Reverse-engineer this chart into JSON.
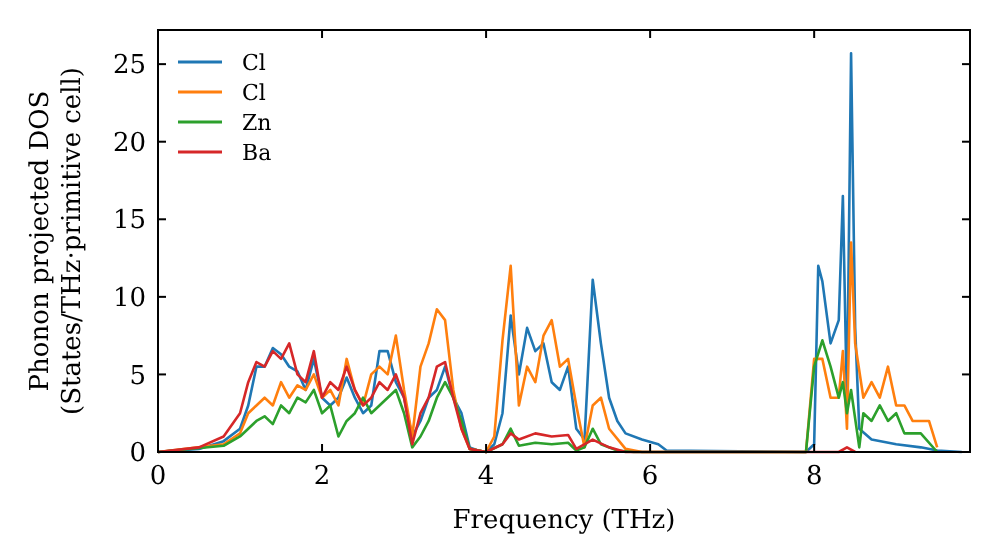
{
  "chart_data": {
    "type": "line",
    "xlabel": "Frequency (THz)",
    "ylabel": "Phonon projected DOS\n(States/THz·primitive cell)",
    "xlim": [
      0,
      9.9
    ],
    "ylim": [
      0,
      27.2
    ],
    "xticks": [
      0,
      2,
      4,
      6,
      8
    ],
    "yticks": [
      0,
      5,
      10,
      15,
      20,
      25
    ],
    "legend": "top left",
    "grid": false,
    "marker": "none",
    "line_style": "solid",
    "series": [
      {
        "name": "Cl",
        "color": "#1f77b4",
        "x": [
          0,
          0.5,
          0.8,
          1.0,
          1.1,
          1.2,
          1.3,
          1.4,
          1.5,
          1.6,
          1.7,
          1.8,
          1.9,
          2.0,
          2.1,
          2.2,
          2.3,
          2.4,
          2.5,
          2.6,
          2.7,
          2.8,
          2.9,
          3.0,
          3.1,
          3.2,
          3.3,
          3.4,
          3.5,
          3.6,
          3.7,
          3.8,
          3.9,
          4.0,
          4.1,
          4.2,
          4.3,
          4.4,
          4.5,
          4.6,
          4.7,
          4.8,
          4.9,
          5.0,
          5.1,
          5.2,
          5.3,
          5.4,
          5.5,
          5.6,
          5.7,
          5.9,
          6.1,
          6.2,
          7.9,
          8.0,
          8.05,
          8.1,
          8.2,
          8.3,
          8.35,
          8.4,
          8.45,
          8.5,
          8.55,
          8.7,
          9.0,
          9.3,
          9.5,
          9.8
        ],
        "values": [
          0,
          0.2,
          0.7,
          1.5,
          3,
          5.5,
          5.5,
          6.7,
          6.3,
          5.5,
          5.2,
          4,
          6,
          3.5,
          3,
          3.5,
          4.8,
          3.5,
          2.5,
          3,
          6.5,
          6.5,
          4.5,
          3.5,
          1,
          2,
          3.5,
          4,
          5.5,
          3.5,
          2.5,
          0.3,
          0.1,
          0,
          0.5,
          2.5,
          8.8,
          5,
          8,
          6.5,
          7,
          4.5,
          4,
          5.5,
          1.5,
          0.8,
          11.1,
          7,
          3.5,
          2,
          1.2,
          0.8,
          0.5,
          0.1,
          0,
          0.5,
          12,
          11,
          7,
          8.5,
          16.5,
          3,
          25.7,
          8,
          1.5,
          0.8,
          0.5,
          0.3,
          0.1,
          0
        ]
      },
      {
        "name": "Cl",
        "color": "#ff7f0e",
        "x": [
          0,
          0.8,
          1.0,
          1.1,
          1.2,
          1.3,
          1.4,
          1.5,
          1.6,
          1.7,
          1.8,
          1.9,
          2.0,
          2.1,
          2.2,
          2.3,
          2.4,
          2.5,
          2.6,
          2.7,
          2.8,
          2.9,
          3.0,
          3.1,
          3.2,
          3.3,
          3.4,
          3.5,
          3.6,
          3.7,
          3.8,
          4.0,
          4.1,
          4.2,
          4.3,
          4.4,
          4.5,
          4.6,
          4.7,
          4.8,
          4.9,
          5.0,
          5.1,
          5.2,
          5.3,
          5.4,
          5.5,
          5.7,
          5.9,
          7.9,
          8.0,
          8.1,
          8.2,
          8.3,
          8.35,
          8.4,
          8.45,
          8.5,
          8.6,
          8.7,
          8.8,
          8.9,
          9.0,
          9.1,
          9.2,
          9.4,
          9.5
        ],
        "values": [
          0,
          0.5,
          1.2,
          2.5,
          3,
          3.5,
          3,
          4.5,
          3.5,
          4.3,
          4,
          5,
          3.5,
          4,
          3,
          6,
          4,
          3,
          5,
          5.5,
          5,
          7.5,
          4,
          1,
          5.5,
          7,
          9.2,
          8.5,
          4,
          1.5,
          0.2,
          0,
          1,
          7.2,
          12,
          3,
          5.5,
          4.5,
          7.5,
          8.5,
          5.5,
          6,
          3,
          0.3,
          3,
          3.5,
          1.5,
          0.2,
          0,
          0,
          6,
          6,
          3.5,
          3.5,
          6.5,
          1.5,
          13.5,
          7,
          3.5,
          4.5,
          3.5,
          5.5,
          3,
          3,
          2,
          2,
          0.3
        ]
      },
      {
        "name": "Zn",
        "color": "#2ca02c",
        "x": [
          0,
          0.8,
          1.0,
          1.2,
          1.3,
          1.4,
          1.5,
          1.6,
          1.7,
          1.8,
          1.9,
          2.0,
          2.1,
          2.2,
          2.3,
          2.4,
          2.5,
          2.6,
          2.7,
          2.8,
          2.9,
          3.0,
          3.1,
          3.2,
          3.3,
          3.4,
          3.5,
          3.6,
          3.7,
          3.8,
          4.0,
          4.2,
          4.3,
          4.4,
          4.6,
          4.8,
          5.0,
          5.1,
          5.2,
          5.3,
          5.4,
          5.6,
          5.8,
          7.9,
          8.0,
          8.1,
          8.2,
          8.3,
          8.35,
          8.4,
          8.45,
          8.55,
          8.6,
          8.7,
          8.8,
          8.9,
          9.0,
          9.1,
          9.3,
          9.5
        ],
        "values": [
          0,
          0.4,
          1,
          2,
          2.3,
          1.8,
          3,
          2.5,
          3.5,
          3.2,
          4,
          2.5,
          3,
          1,
          2,
          2.5,
          3.5,
          2.5,
          3,
          3.5,
          4,
          2.5,
          0.3,
          1,
          2,
          3.5,
          4.5,
          3.5,
          2,
          0.2,
          0,
          0.5,
          1.5,
          0.4,
          0.6,
          0.5,
          0.6,
          0.1,
          0.3,
          1.5,
          0.5,
          0.1,
          0,
          0,
          5.5,
          7.2,
          5.5,
          3.5,
          4.5,
          2.5,
          4,
          0.3,
          2.5,
          2,
          3,
          2,
          2.5,
          1.2,
          1.2,
          0
        ]
      },
      {
        "name": "Ba",
        "color": "#d62728",
        "x": [
          0,
          0.5,
          0.8,
          1.0,
          1.1,
          1.2,
          1.3,
          1.4,
          1.5,
          1.6,
          1.7,
          1.8,
          1.9,
          2.0,
          2.1,
          2.2,
          2.3,
          2.4,
          2.5,
          2.6,
          2.7,
          2.8,
          2.9,
          3.0,
          3.1,
          3.2,
          3.3,
          3.4,
          3.5,
          3.6,
          3.7,
          3.8,
          4.0,
          4.2,
          4.3,
          4.4,
          4.6,
          4.8,
          5.0,
          5.1,
          5.3,
          5.5,
          5.7,
          8.3,
          8.4,
          8.5
        ],
        "values": [
          0,
          0.3,
          1,
          2.5,
          4.5,
          5.8,
          5.5,
          6.5,
          6,
          7,
          5,
          4.5,
          6.5,
          3.5,
          4.5,
          4,
          5.5,
          4,
          3,
          3.5,
          4.5,
          4,
          5,
          3.5,
          0.5,
          2.5,
          3.5,
          5.5,
          5.8,
          3.5,
          1.5,
          0.2,
          0,
          0.5,
          1.2,
          0.8,
          1.2,
          1,
          1.1,
          0.2,
          0.8,
          0.3,
          0,
          0,
          0.3,
          0
        ]
      }
    ]
  }
}
